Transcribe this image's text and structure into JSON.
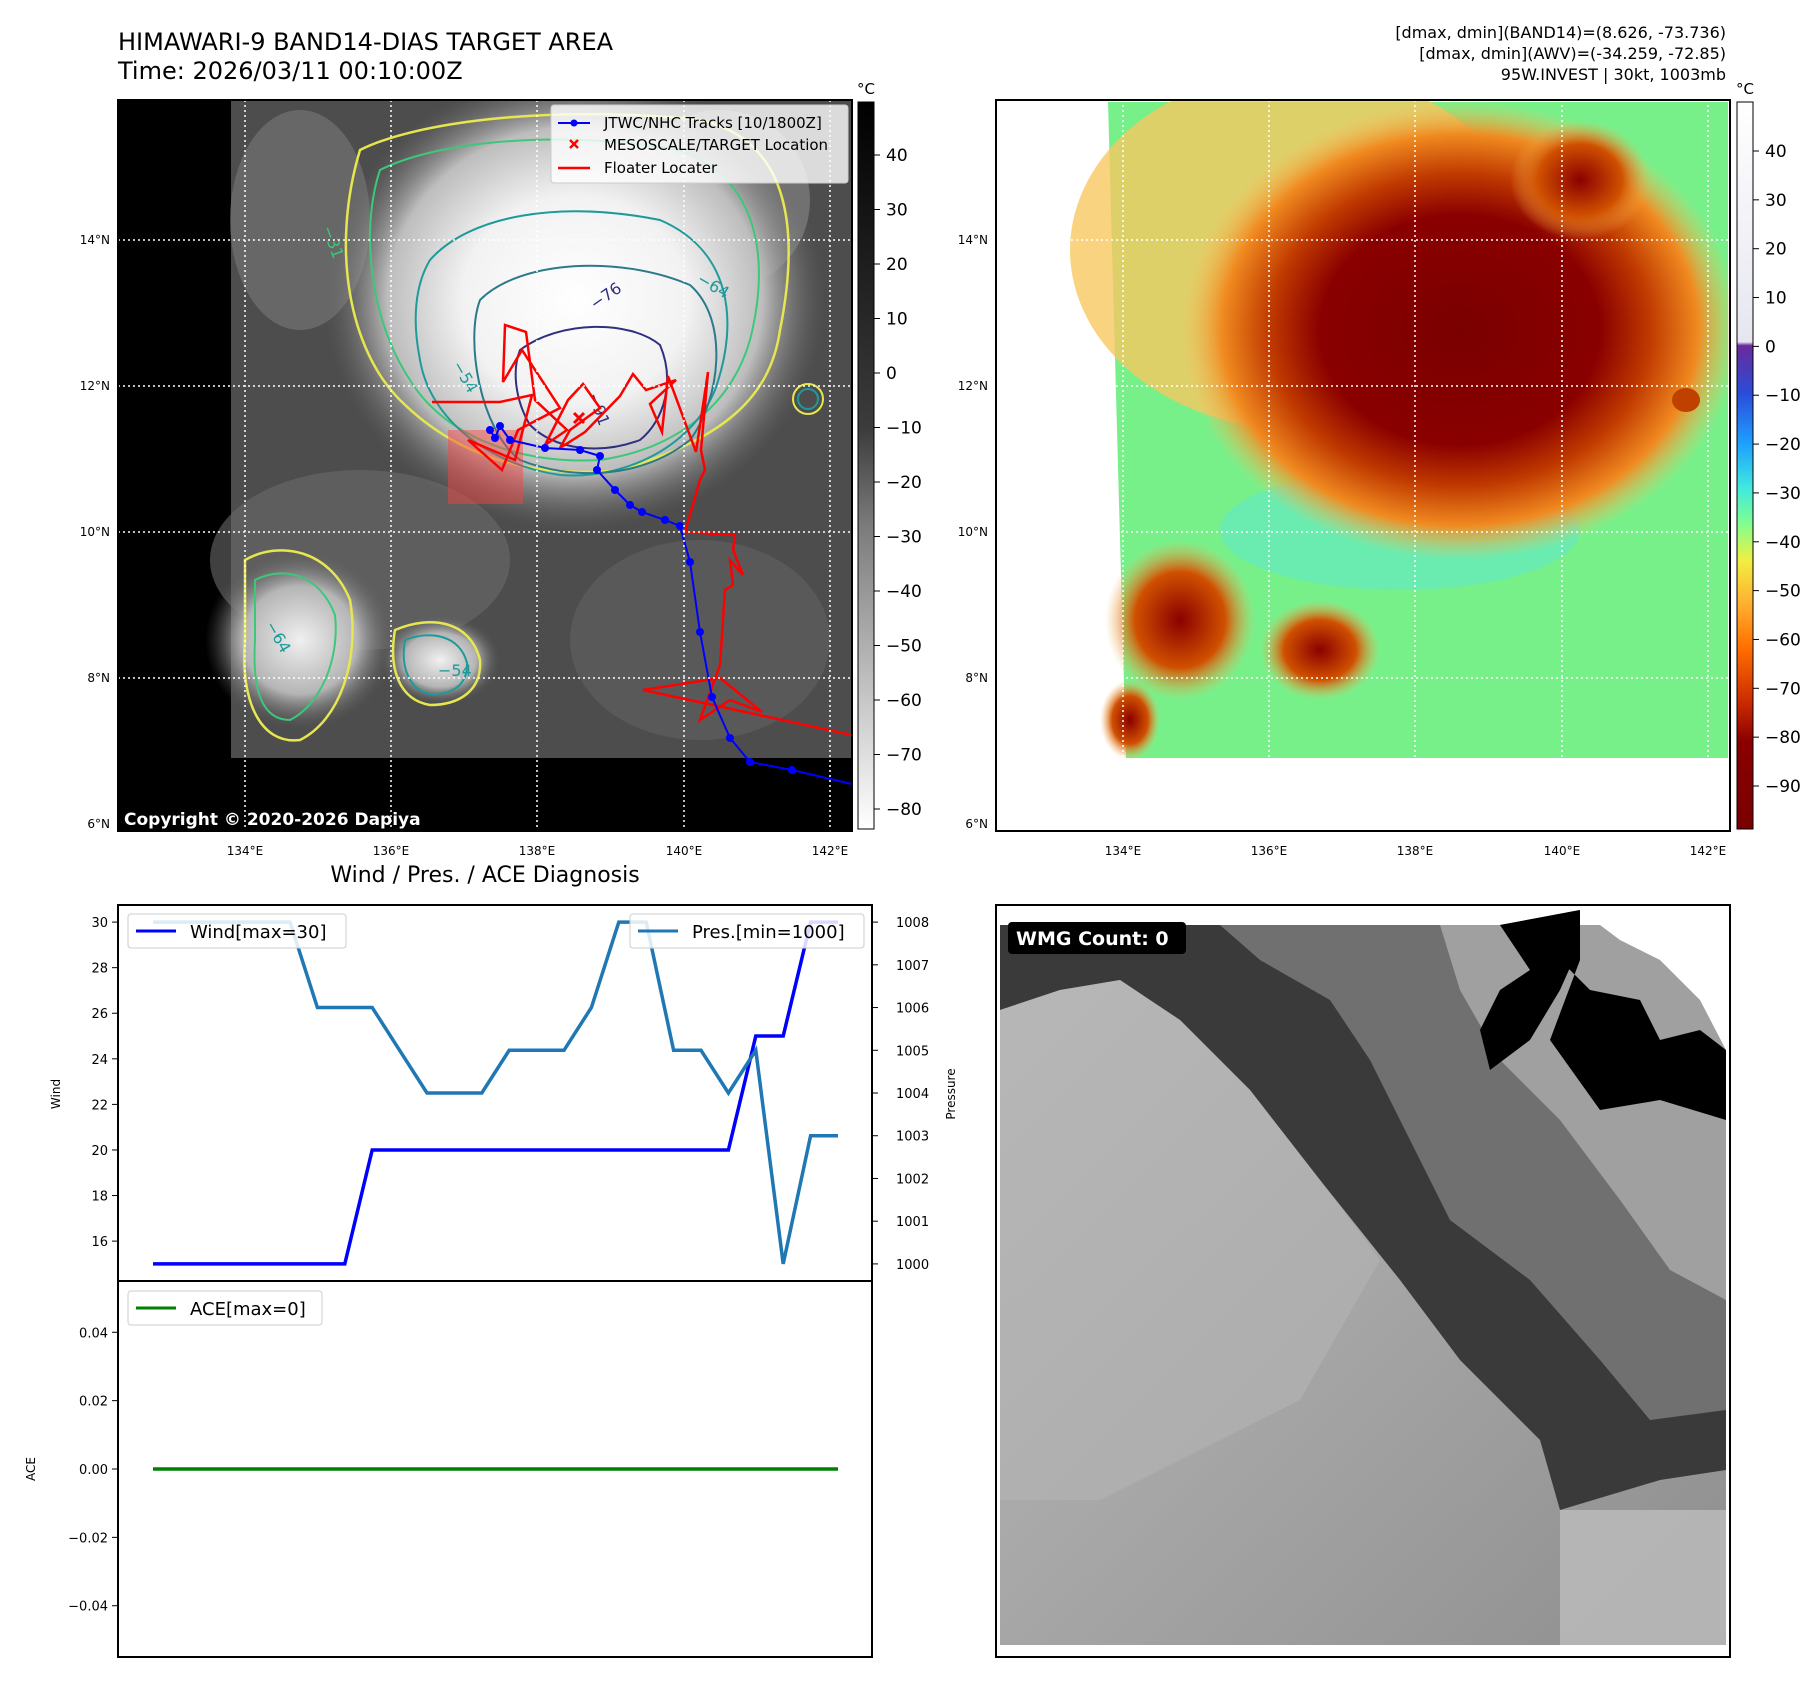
{
  "header": {
    "title_line1": "HIMAWARI-9 BAND14-DIAS TARGET AREA",
    "title_line2": "Time: 2026/03/11 00:10:00Z",
    "info_line1": "[dmax, dmin](BAND14)=(8.626, -73.736)",
    "info_line2": "[dmax, dmin](AWV)=(-34.259, -72.85)",
    "info_line3": "95W.INVEST | 30kt, 1003mb"
  },
  "map_axes": {
    "lon_labels": [
      "134°E",
      "136°E",
      "138°E",
      "140°E",
      "142°E"
    ],
    "lat_labels": [
      "14°N",
      "12°N",
      "10°N",
      "8°N",
      "6°N"
    ]
  },
  "ir_panel": {
    "colorbar_unit": "°C",
    "colorbar_ticks": [
      "40",
      "30",
      "20",
      "10",
      "0",
      "−10",
      "−20",
      "−30",
      "−40",
      "−50",
      "−60",
      "−70",
      "−80"
    ],
    "legend": [
      {
        "label": "JTWC/NHC Tracks [10/1800Z]",
        "color": "#0000ff"
      },
      {
        "label": "MESOSCALE/TARGET Location",
        "color": "#ff0000"
      },
      {
        "label": "Floater Locater",
        "color": "#ff0000"
      }
    ],
    "contour_labels": [
      "−31",
      "−54",
      "−64",
      "−76",
      "−91",
      "−54",
      "−64"
    ],
    "copyright": "Copyright © 2020-2026 Dapiya"
  },
  "wv_panel": {
    "colorbar_unit": "°C",
    "colorbar_ticks": [
      "40",
      "30",
      "20",
      "10",
      "0",
      "−10",
      "−20",
      "−30",
      "−40",
      "−50",
      "−60",
      "−70",
      "−80",
      "−90"
    ]
  },
  "diag_panel": {
    "title": "Wind / Pres. / ACE Diagnosis"
  },
  "wmg_panel": {
    "label": "WMG Count: 0"
  },
  "colors": {
    "wind": "#0000ff",
    "pressure": "#1f77b4",
    "ace": "#008000",
    "track": "#0000ff",
    "floater": "#ff0000"
  },
  "chart_data": [
    {
      "type": "line",
      "name": "wind",
      "ylabel": "Wind",
      "legend": "Wind[max=30]",
      "ylim": [
        14.25,
        30.75
      ],
      "yticks": [
        16,
        18,
        20,
        22,
        24,
        26,
        28,
        30
      ],
      "values": [
        15,
        15,
        15,
        15,
        15,
        15,
        15,
        15,
        20,
        20,
        20,
        20,
        20,
        20,
        20,
        20,
        20,
        20,
        20,
        20,
        20,
        20,
        25,
        25,
        30,
        30
      ]
    },
    {
      "type": "line",
      "name": "pressure",
      "ylabel": "Pressure",
      "legend": "Pres.[min=1000]",
      "ylim": [
        999.6,
        1008.4
      ],
      "yticks": [
        1000,
        1001,
        1002,
        1003,
        1004,
        1005,
        1006,
        1007,
        1008
      ],
      "values": [
        1008,
        1008,
        1008,
        1008,
        1008,
        1008,
        1006,
        1006,
        1006,
        1005,
        1004,
        1004,
        1004,
        1005,
        1005,
        1005,
        1006,
        1008,
        1008,
        1005,
        1005,
        1004,
        1005,
        1000,
        1003,
        1003
      ]
    },
    {
      "type": "line",
      "name": "ace",
      "ylabel": "ACE",
      "legend": "ACE[max=0]",
      "ylim": [
        -0.055,
        0.055
      ],
      "yticks": [
        -0.04,
        -0.02,
        0.0,
        0.02,
        0.04
      ],
      "ytick_labels": [
        "−0.04",
        "−0.02",
        "0.00",
        "0.02",
        "0.04"
      ],
      "values": [
        0,
        0,
        0,
        0,
        0,
        0,
        0,
        0,
        0,
        0,
        0,
        0,
        0,
        0,
        0,
        0,
        0,
        0,
        0,
        0,
        0,
        0,
        0,
        0,
        0,
        0
      ]
    }
  ]
}
